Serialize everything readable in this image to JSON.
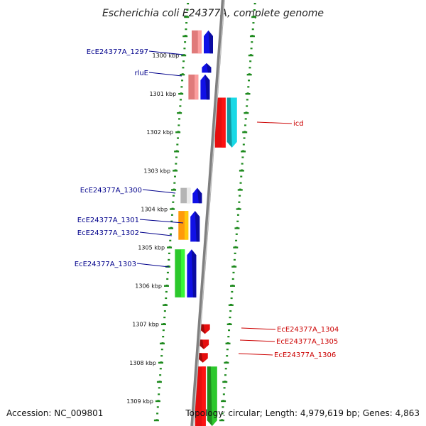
{
  "title": "Escherichia coli E24377A, complete genome",
  "footer": {
    "accession": "Accession: NC_009801",
    "topology": "Topology: circular; Length: 4,979,619 bp; Genes: 4,863"
  },
  "colors": {
    "backbone": "#808080",
    "forward_label": "#00008b",
    "reverse_label": "#cc0000",
    "tick": "#1e8a1e",
    "blue": "#1010e6",
    "pink": "#e07a7a",
    "red": "#e60e0e",
    "cyan": "#19d9e6",
    "gray": "#b4b4b4",
    "orange": "#ff9a0a",
    "green": "#2cc82c"
  },
  "axis": {
    "unit": "kbp",
    "labeled_ticks": [
      "1300 kbp",
      "1301 kbp",
      "1302 kbp",
      "1303 kbp",
      "1304 kbp",
      "1305 kbp",
      "1306 kbp",
      "1307 kbp",
      "1308 kbp",
      "1309 kbp"
    ]
  },
  "labels": {
    "forward": [
      "EcE24377A_1297",
      "rluE",
      "EcE24377A_1300",
      "EcE24377A_1301",
      "EcE24377A_1302",
      "EcE24377A_1303"
    ],
    "reverse": [
      "icd",
      "EcE24377A_1304",
      "EcE24377A_1305",
      "EcE24377A_1306"
    ]
  },
  "features": [
    {
      "name": "EcE24377A_1297",
      "strand": "+",
      "kind": "cds",
      "start_kbp": 1299.35,
      "end_kbp": 1299.95,
      "color": "blue"
    },
    {
      "name": "EcE24377A_1297",
      "strand": "+",
      "kind": "gene",
      "start_kbp": 1299.35,
      "end_kbp": 1299.95,
      "color": "pink"
    },
    {
      "name": "",
      "strand": "+",
      "kind": "cds",
      "start_kbp": 1300.2,
      "end_kbp": 1300.45,
      "color": "blue"
    },
    {
      "name": "rluE",
      "strand": "+",
      "kind": "cds",
      "start_kbp": 1300.5,
      "end_kbp": 1301.15,
      "color": "blue"
    },
    {
      "name": "rluE",
      "strand": "+",
      "kind": "gene",
      "start_kbp": 1300.5,
      "end_kbp": 1301.15,
      "color": "pink"
    },
    {
      "name": "icd",
      "strand": "-",
      "kind": "cds",
      "start_kbp": 1301.1,
      "end_kbp": 1302.4,
      "color": "cyan"
    },
    {
      "name": "icd",
      "strand": "-",
      "kind": "gene",
      "start_kbp": 1301.1,
      "end_kbp": 1302.4,
      "color": "red"
    },
    {
      "name": "EcE24377A_1300",
      "strand": "+",
      "kind": "cds",
      "start_kbp": 1303.45,
      "end_kbp": 1303.85,
      "color": "blue"
    },
    {
      "name": "EcE24377A_1300",
      "strand": "+",
      "kind": "gene",
      "start_kbp": 1303.45,
      "end_kbp": 1303.85,
      "color": "gray"
    },
    {
      "name": "EcE24377A_1301",
      "strand": "+",
      "kind": "cds",
      "start_kbp": 1304.05,
      "end_kbp": 1304.85,
      "color": "blue"
    },
    {
      "name": "EcE24377A_1301",
      "strand": "+",
      "kind": "gene",
      "start_kbp": 1304.05,
      "end_kbp": 1304.8,
      "color": "orange"
    },
    {
      "name": "EcE24377A_1303",
      "strand": "+",
      "kind": "cds",
      "start_kbp": 1305.05,
      "end_kbp": 1306.3,
      "color": "blue"
    },
    {
      "name": "EcE24377A_1303",
      "strand": "+",
      "kind": "gene",
      "start_kbp": 1305.05,
      "end_kbp": 1306.3,
      "color": "green"
    },
    {
      "name": "EcE24377A_1304",
      "strand": "-",
      "kind": "cds",
      "start_kbp": 1307.0,
      "end_kbp": 1307.25,
      "color": "red"
    },
    {
      "name": "EcE24377A_1305",
      "strand": "-",
      "kind": "cds",
      "start_kbp": 1307.4,
      "end_kbp": 1307.65,
      "color": "red"
    },
    {
      "name": "EcE24377A_1306",
      "strand": "-",
      "kind": "cds",
      "start_kbp": 1307.75,
      "end_kbp": 1308.0,
      "color": "red"
    },
    {
      "name": "",
      "strand": "-",
      "kind": "gene",
      "start_kbp": 1308.1,
      "end_kbp": 1309.65,
      "color": "red"
    },
    {
      "name": "",
      "strand": "-",
      "kind": "cds",
      "start_kbp": 1308.1,
      "end_kbp": 1309.65,
      "color": "green"
    }
  ]
}
